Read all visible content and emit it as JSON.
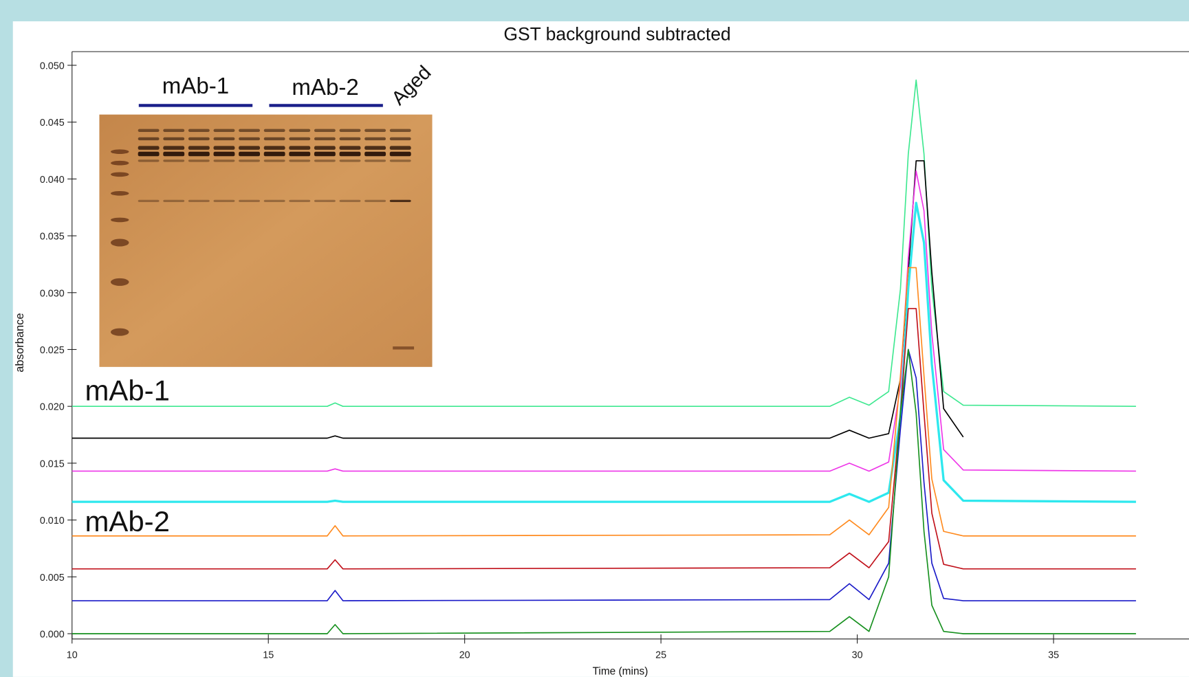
{
  "chart_data": {
    "type": "line",
    "title": "GST background subtracted",
    "xlabel": "Time (mins)",
    "ylabel": "absorbance",
    "annotations": [
      "mAb-1",
      "mAb-2"
    ],
    "inset_labels": [
      "mAb-1",
      "mAb-2",
      "Aged"
    ],
    "xlim": [
      10,
      38.45
    ],
    "ylim": [
      0,
      0.0512
    ],
    "xticks": [
      10,
      15,
      20,
      25,
      30,
      35
    ],
    "yticks": [
      {
        "value": 0,
        "label": "0.000"
      },
      0.005,
      {
        "value": 0.01,
        "label": "0.010"
      },
      0.015,
      {
        "value": 0.02,
        "label": "0.020"
      },
      0.025,
      {
        "value": 0.03,
        "label": "0.030"
      },
      0.035,
      {
        "value": 0.04,
        "label": "0.040"
      },
      0.045,
      {
        "value": 0.05,
        "label": "0.050"
      }
    ],
    "x": [
      10,
      16.5,
      16.7,
      16.9,
      29.3,
      29.8,
      30.3,
      30.8,
      31.1,
      31.3,
      31.5,
      31.7,
      31.9,
      32.2,
      32.7,
      37.1
    ],
    "series": [
      {
        "color": "#3ee890",
        "values": [
          0.02,
          0.02,
          0.0203,
          0.02,
          0.02,
          0.0208,
          0.0201,
          0.0213,
          0.0303,
          0.0422,
          0.0487,
          0.0422,
          0.0303,
          0.0213,
          0.0201,
          0.02
        ]
      },
      {
        "color": "#000000",
        "values": [
          0.0172,
          0.0172,
          0.0174,
          0.0172,
          0.0172,
          0.0179,
          0.0172,
          0.0176,
          0.0224,
          0.0318,
          0.0416,
          0.0416,
          0.0318,
          0.0198,
          0.0173,
          null
        ]
      },
      {
        "color": "#ee36e8",
        "values": [
          0.0143,
          0.0143,
          0.0145,
          0.0143,
          0.0143,
          0.015,
          0.0143,
          0.0151,
          0.0218,
          0.0331,
          0.0407,
          0.0372,
          0.0264,
          0.0162,
          0.0144,
          0.0143
        ]
      },
      {
        "color": "#2ee8ee",
        "values": [
          0.0116,
          0.0116,
          0.0117,
          0.0116,
          0.0116,
          0.0123,
          0.0116,
          0.0124,
          0.0191,
          0.0304,
          0.0379,
          0.0344,
          0.0237,
          0.0135,
          0.0117,
          0.0116
        ]
      },
      {
        "color": "#ff8a1e",
        "values": [
          0.0086,
          0.0086,
          0.0095,
          0.0086,
          0.0087,
          0.01,
          0.0087,
          0.0111,
          0.0227,
          0.0322,
          0.0322,
          0.0227,
          0.0136,
          0.009,
          0.0086,
          0.0086
        ]
      },
      {
        "color": "#c0101a",
        "values": [
          0.0057,
          0.0057,
          0.0065,
          0.0057,
          0.0058,
          0.0071,
          0.0058,
          0.0081,
          0.0194,
          0.0286,
          0.0286,
          0.0194,
          0.0106,
          0.0061,
          0.0057,
          0.0057
        ]
      },
      {
        "color": "#1a1ac8",
        "values": [
          0.0029,
          0.0029,
          0.0038,
          0.0029,
          0.003,
          0.0044,
          0.003,
          0.0062,
          0.018,
          0.025,
          0.0225,
          0.0133,
          0.0062,
          0.0031,
          0.0029,
          0.0029
        ]
      },
      {
        "color": "#16901e",
        "values": [
          0.0,
          0.0,
          0.0008,
          0.0,
          0.0002,
          0.0015,
          0.0002,
          0.005,
          0.0194,
          0.025,
          0.0194,
          0.009,
          0.0025,
          0.0002,
          0.0,
          0.0
        ]
      }
    ]
  }
}
